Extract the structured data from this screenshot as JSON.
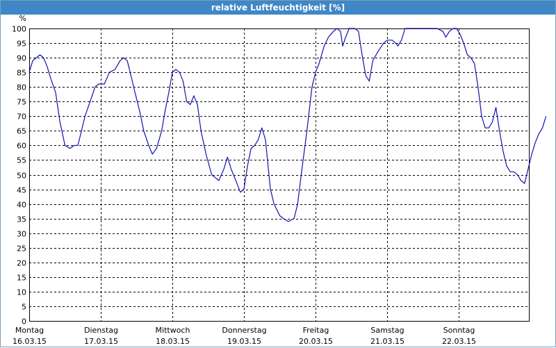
{
  "window": {
    "title": "relative Luftfeuchtigkeit [%]"
  },
  "colors": {
    "title_bar": "#3f87c6",
    "line": "#1010b0",
    "grid": "#000000",
    "background": "#ffffff"
  },
  "chart_data": {
    "type": "line",
    "title": "relative Luftfeuchtigkeit [%]",
    "ylabel": "%",
    "ylim": [
      0,
      100
    ],
    "ytick_step": 5,
    "grid": true,
    "x_categories": [
      {
        "day": "Montag",
        "date": "16.03.15"
      },
      {
        "day": "Dienstag",
        "date": "17.03.15"
      },
      {
        "day": "Mittwoch",
        "date": "18.03.15"
      },
      {
        "day": "Donnerstag",
        "date": "19.03.15"
      },
      {
        "day": "Freitag",
        "date": "20.03.15"
      },
      {
        "day": "Samstag",
        "date": "21.03.15"
      },
      {
        "day": "Sonntag",
        "date": "22.03.15"
      }
    ],
    "series": [
      {
        "x_unit": "days since Montag 16.03.15 00:00",
        "points": [
          [
            0.0,
            85
          ],
          [
            0.05,
            89
          ],
          [
            0.1,
            90
          ],
          [
            0.15,
            91
          ],
          [
            0.2,
            90
          ],
          [
            0.25,
            87
          ],
          [
            0.3,
            83
          ],
          [
            0.37,
            78
          ],
          [
            0.43,
            68
          ],
          [
            0.5,
            60
          ],
          [
            0.57,
            59
          ],
          [
            0.63,
            60
          ],
          [
            0.68,
            60
          ],
          [
            0.72,
            64
          ],
          [
            0.78,
            70
          ],
          [
            0.85,
            75
          ],
          [
            0.92,
            80
          ],
          [
            0.97,
            81
          ],
          [
            1.05,
            81
          ],
          [
            1.12,
            85
          ],
          [
            1.2,
            86
          ],
          [
            1.27,
            89
          ],
          [
            1.32,
            90
          ],
          [
            1.37,
            89
          ],
          [
            1.42,
            84
          ],
          [
            1.48,
            78
          ],
          [
            1.55,
            71
          ],
          [
            1.6,
            65
          ],
          [
            1.67,
            60
          ],
          [
            1.72,
            57
          ],
          [
            1.78,
            59
          ],
          [
            1.85,
            65
          ],
          [
            1.9,
            72
          ],
          [
            1.95,
            78
          ],
          [
            2.0,
            85
          ],
          [
            2.05,
            86
          ],
          [
            2.1,
            85
          ],
          [
            2.15,
            82
          ],
          [
            2.2,
            75
          ],
          [
            2.25,
            74
          ],
          [
            2.3,
            77
          ],
          [
            2.35,
            74
          ],
          [
            2.4,
            65
          ],
          [
            2.47,
            57
          ],
          [
            2.55,
            50
          ],
          [
            2.6,
            49
          ],
          [
            2.65,
            48
          ],
          [
            2.72,
            52
          ],
          [
            2.77,
            56
          ],
          [
            2.82,
            52
          ],
          [
            2.87,
            49
          ],
          [
            2.95,
            44
          ],
          [
            3.0,
            45
          ],
          [
            3.05,
            53
          ],
          [
            3.1,
            59
          ],
          [
            3.15,
            60
          ],
          [
            3.2,
            62
          ],
          [
            3.25,
            66
          ],
          [
            3.3,
            62
          ],
          [
            3.37,
            45
          ],
          [
            3.42,
            40
          ],
          [
            3.5,
            36
          ],
          [
            3.55,
            35
          ],
          [
            3.62,
            34
          ],
          [
            3.7,
            35
          ],
          [
            3.75,
            40
          ],
          [
            3.8,
            50
          ],
          [
            3.88,
            65
          ],
          [
            3.95,
            80
          ],
          [
            4.0,
            85
          ],
          [
            4.05,
            88
          ],
          [
            4.12,
            94
          ],
          [
            4.18,
            97
          ],
          [
            4.25,
            99
          ],
          [
            4.3,
            100
          ],
          [
            4.35,
            99
          ],
          [
            4.38,
            94
          ],
          [
            4.42,
            97
          ],
          [
            4.47,
            100
          ],
          [
            4.55,
            100
          ],
          [
            4.6,
            99
          ],
          [
            4.65,
            91
          ],
          [
            4.7,
            84
          ],
          [
            4.75,
            82
          ],
          [
            4.8,
            89
          ],
          [
            4.87,
            92
          ],
          [
            4.95,
            95
          ],
          [
            5.0,
            96
          ],
          [
            5.07,
            96
          ],
          [
            5.12,
            95
          ],
          [
            5.15,
            94
          ],
          [
            5.2,
            96
          ],
          [
            5.25,
            100
          ],
          [
            5.3,
            100
          ],
          [
            5.4,
            100
          ],
          [
            5.5,
            100
          ],
          [
            5.6,
            100
          ],
          [
            5.7,
            100
          ],
          [
            5.78,
            99
          ],
          [
            5.82,
            97
          ],
          [
            5.87,
            99
          ],
          [
            5.92,
            100
          ],
          [
            5.97,
            100
          ],
          [
            6.02,
            98
          ],
          [
            6.07,
            95
          ],
          [
            6.12,
            91
          ],
          [
            6.17,
            90
          ],
          [
            6.22,
            88
          ],
          [
            6.27,
            80
          ],
          [
            6.32,
            70
          ],
          [
            6.37,
            66
          ],
          [
            6.42,
            66
          ],
          [
            6.47,
            68
          ],
          [
            6.52,
            73
          ],
          [
            6.57,
            65
          ],
          [
            6.62,
            58
          ],
          [
            6.67,
            53
          ],
          [
            6.72,
            51
          ],
          [
            6.77,
            51
          ],
          [
            6.82,
            50
          ],
          [
            6.87,
            48
          ],
          [
            6.92,
            47
          ],
          [
            6.97,
            52
          ],
          [
            7.02,
            57
          ],
          [
            7.07,
            61
          ],
          [
            7.12,
            64
          ],
          [
            7.17,
            66
          ],
          [
            7.22,
            70
          ]
        ]
      }
    ]
  }
}
